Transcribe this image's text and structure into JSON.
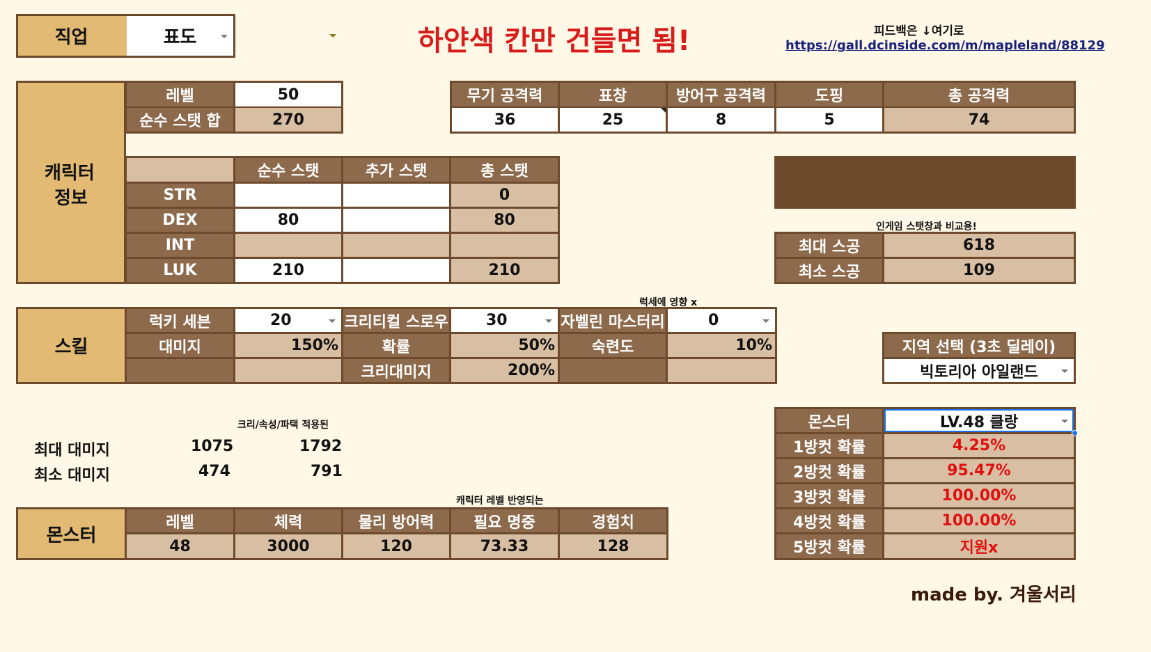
{
  "header": {
    "job_label": "직업",
    "job_value": "표도",
    "banner": "하얀색 칸만 건들면 됨!",
    "feedback_label": "피드백은 ↓여기로",
    "feedback_link": "https://gall.dcinside.com/m/mapleland/88129"
  },
  "character": {
    "section_label_1": "캐릭터",
    "section_label_2": "정보",
    "level_label": "레벨",
    "level_value": "50",
    "pure_stat_sum_label": "순수 스탯 합",
    "pure_stat_sum_value": "270",
    "stat_headers": [
      "",
      "순수 스탯",
      "추가 스탯",
      "총 스탯"
    ],
    "stats": [
      {
        "name": "STR",
        "pure": "",
        "extra": "",
        "total": "0"
      },
      {
        "name": "DEX",
        "pure": "80",
        "extra": "",
        "total": "80"
      },
      {
        "name": "INT",
        "pure": "",
        "extra": "",
        "total": ""
      },
      {
        "name": "LUK",
        "pure": "210",
        "extra": "",
        "total": "210"
      }
    ]
  },
  "attack": {
    "headers": [
      "무기 공격력",
      "표창",
      "방어구 공격력",
      "도핑",
      "총 공격력"
    ],
    "values": [
      "36",
      "25",
      "8",
      "5",
      "74"
    ]
  },
  "stat_attack": {
    "note": "인게임 스탯창과 비교용!",
    "max_label": "최대 스공",
    "max_value": "618",
    "min_label": "최소 스공",
    "min_value": "109"
  },
  "skill": {
    "section_label": "스킬",
    "note": "럭세에 영향 x",
    "lucky_seven_label": "럭키 세븐",
    "lucky_seven_level": "20",
    "critical_throw_label": "크리티컬 스로우",
    "critical_throw_level": "30",
    "javelin_mastery_label": "자벨린 마스터리",
    "javelin_mastery_level": "0",
    "damage_label": "대미지",
    "damage_value": "150%",
    "chance_label": "확률",
    "chance_value": "50%",
    "mastery_label": "숙련도",
    "mastery_value": "10%",
    "crit_damage_label": "크리대미지",
    "crit_damage_value": "200%"
  },
  "region": {
    "label": "지역 선택 (3초 딜레이)",
    "value": "빅토리아 아일랜드"
  },
  "damage": {
    "note": "크리/속성/파택 적용된",
    "max_label": "최대 대미지",
    "max_value": "1075",
    "max_value_crit": "1792",
    "min_label": "최소 대미지",
    "min_value": "474",
    "min_value_crit": "791"
  },
  "monster": {
    "section_label": "몬스터",
    "note": "캐릭터 레벨 반영되는",
    "headers": [
      "레벨",
      "체력",
      "물리 방어력",
      "필요 명중",
      "경험치"
    ],
    "values": [
      "48",
      "3000",
      "120",
      "73.33",
      "128"
    ]
  },
  "kill_chance": {
    "monster_label": "몬스터",
    "monster_value": "LV.48 클랑",
    "rows": [
      {
        "label": "1방컷 확률",
        "value": "4.25%"
      },
      {
        "label": "2방컷 확률",
        "value": "95.47%"
      },
      {
        "label": "3방컷 확률",
        "value": "100.00%"
      },
      {
        "label": "4방컷 확률",
        "value": "100.00%"
      },
      {
        "label": "5방컷 확률",
        "value": "지원x"
      }
    ]
  },
  "credit": "made by. 겨울서리",
  "colors": {
    "background": "#fff8e6",
    "gold": "#e2ba74",
    "dark_brown": "#8e6a4c",
    "tan": "#d8bfa3",
    "border": "#6e4a2d",
    "banner_red": "#d81c1c",
    "result_red": "#e01010",
    "link_blue": "#1a237e"
  }
}
